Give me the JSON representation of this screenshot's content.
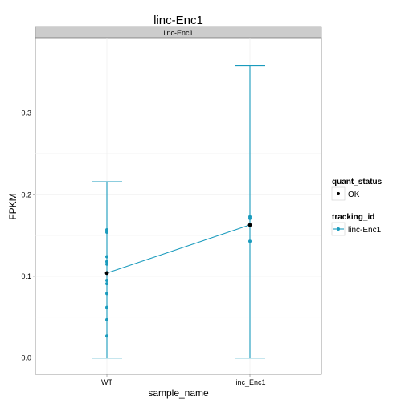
{
  "chart_data": {
    "type": "line",
    "title": "linc-Enc1",
    "facet_label": "linc-Enc1",
    "xlabel": "sample_name",
    "ylabel": "FPKM",
    "categories": [
      "WT",
      "linc_Enc1"
    ],
    "ylim": [
      -0.02,
      0.392
    ],
    "yticks": [
      "0.0",
      "0.1",
      "0.2",
      "0.3"
    ],
    "ytick_values": [
      0.0,
      0.1,
      0.2,
      0.3
    ],
    "grid": true,
    "series": [
      {
        "name": "linc-Enc1",
        "color": "#1a9bbd",
        "means": [
          0.104,
          0.163
        ],
        "error_low": [
          0.0,
          0.0
        ],
        "error_high": [
          0.216,
          0.358
        ],
        "replicates": [
          [
            0.027,
            0.047,
            0.062,
            0.079,
            0.091,
            0.095,
            0.104,
            0.115,
            0.118,
            0.124,
            0.154,
            0.157
          ],
          [
            0.143,
            0.171,
            0.173
          ]
        ]
      }
    ],
    "legend": {
      "placement": "right",
      "quant_status": {
        "title": "quant_status",
        "items": [
          "OK"
        ]
      },
      "tracking_id": {
        "title": "tracking_id",
        "items": [
          "linc-Enc1"
        ]
      }
    }
  }
}
